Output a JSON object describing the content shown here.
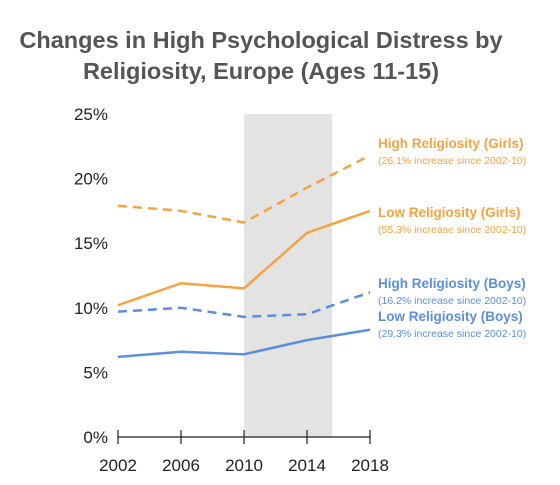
{
  "chart_data": {
    "type": "line",
    "title_lines": [
      "Changes in High Psychological Distress by",
      "Religiosity, Europe (Ages 11-15)"
    ],
    "x": [
      2002,
      2006,
      2010,
      2014,
      2018
    ],
    "x_tick_labels": [
      "2002",
      "2006",
      "2010",
      "2014",
      "2018"
    ],
    "ylim": [
      0,
      25
    ],
    "y_tick_labels": [
      "0%",
      "5%",
      "10%",
      "15%",
      "20%",
      "25%"
    ],
    "y_ticks": [
      0,
      5,
      10,
      15,
      20,
      25
    ],
    "highlight_x_range": [
      2010,
      2015.6
    ],
    "highlight_color": "#e3e3e3",
    "series": [
      {
        "name": "High Religiosity (Girls)",
        "note": "(26.1% increase since 2002-10)",
        "values": [
          17.9,
          17.5,
          16.6,
          19.3,
          21.8
        ],
        "color": "#f4a340",
        "dashed": true
      },
      {
        "name": "Low Religiosity (Girls)",
        "note": "(55.3% increase since 2002-10)",
        "values": [
          10.2,
          11.9,
          11.5,
          15.8,
          17.5
        ],
        "color": "#f4a340",
        "dashed": false
      },
      {
        "name": "High Religiosity (Boys)",
        "note": "(16.2% increase since 2002-10)",
        "values": [
          9.7,
          10.0,
          9.3,
          9.5,
          11.2
        ],
        "color": "#5b8fdc",
        "dashed": true
      },
      {
        "name": "Low Religiosity (Boys)",
        "note": "(29.3% increase since 2002-10)",
        "values": [
          6.2,
          6.6,
          6.4,
          7.5,
          8.3
        ],
        "color": "#5b8fdc",
        "dashed": false
      }
    ],
    "grid": false,
    "legend": "inline labels at right"
  }
}
